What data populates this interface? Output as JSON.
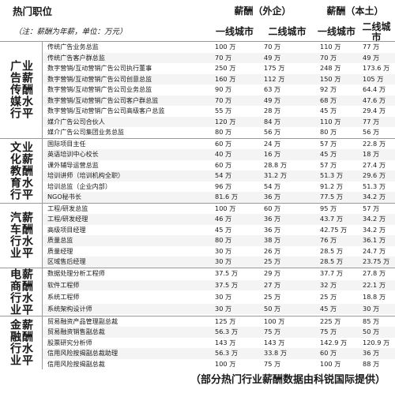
{
  "header": {
    "title": "热门职位",
    "subtitle": "（注：薪酬为年薪，单位：万元）",
    "pay_foreign": "薪酬（外企）",
    "pay_local": "薪酬（本土）",
    "tier1": "一线城市",
    "tier2": "二线城市"
  },
  "sections": [
    {
      "name_cols": [
        "广告传媒行",
        "业薪酬水平"
      ],
      "rows": [
        {
          "job": "传统广告业务总监",
          "f1": "100 万",
          "f2": "70 万",
          "l1": "110 万",
          "l2": "77 万"
        },
        {
          "job": "传统广告客户群总监",
          "f1": "70 万",
          "f2": "49 万",
          "l1": "70 万",
          "l2": "49 万"
        },
        {
          "job": "数字营销/互动营销广告公司执行董事",
          "f1": "250 万",
          "f2": "175 万",
          "l1": "248 万",
          "l2": "173.6 万"
        },
        {
          "job": "数字营销/互动营销广告公司创意总监",
          "f1": "160 万",
          "f2": "112 万",
          "l1": "150 万",
          "l2": "105 万"
        },
        {
          "job": "数字营销/互动营销广告公司业务总监",
          "f1": "90 万",
          "f2": "63 万",
          "l1": "92 万",
          "l2": "64.4 万"
        },
        {
          "job": "数字营销/互动营销广告公司客户群总监",
          "f1": "70 万",
          "f2": "49 万",
          "l1": "68 万",
          "l2": "47.6 万"
        },
        {
          "job": "数字营销/互动营销广告公司高级客户总监",
          "f1": "55 万",
          "f2": "28 万",
          "l1": "45 万",
          "l2": "29.4 万"
        },
        {
          "job": "媒介广告公司合伙人",
          "f1": "120 万",
          "f2": "84 万",
          "l1": "110 万",
          "l2": "77 万"
        },
        {
          "job": "媒介广告公司集团业务总监",
          "f1": "80 万",
          "f2": "56 万",
          "l1": "80 万",
          "l2": "56 万"
        }
      ]
    },
    {
      "name_cols": [
        "文化教育行",
        "业薪酬水平"
      ],
      "rows": [
        {
          "job": "国际项目主任",
          "f1": "60 万",
          "f2": "24 万",
          "l1": "57 万",
          "l2": "22.8 万"
        },
        {
          "job": "英语培训中心校长",
          "f1": "40 万",
          "f2": "16 万",
          "l1": "45 万",
          "l2": "18 万"
        },
        {
          "job": "课外辅导运营总监",
          "f1": "60 万",
          "f2": "28.8 万",
          "l1": "57 万",
          "l2": "27.4 万"
        },
        {
          "job": "培训讲师（培训机构全职）",
          "f1": "54 万",
          "f2": "31.2 万",
          "l1": "51.3 万",
          "l2": "29.6 万"
        },
        {
          "job": "培训总监（企业内部）",
          "f1": "96 万",
          "f2": "54 万",
          "l1": "91.2 万",
          "l2": "51.3 万"
        },
        {
          "job": "NGO秘书长",
          "f1": "81.6 万",
          "f2": "36 万",
          "l1": "77.5 万",
          "l2": "34.2 万"
        }
      ]
    },
    {
      "name_cols": [
        "汽车行业",
        "薪酬水平"
      ],
      "rows": [
        {
          "job": "工程/研发总监",
          "f1": "100 万",
          "f2": "60 万",
          "l1": "95 万",
          "l2": "57 万"
        },
        {
          "job": "工程/研发经理",
          "f1": "46 万",
          "f2": "36 万",
          "l1": "43.7 万",
          "l2": "34.2 万"
        },
        {
          "job": "高级项目经理",
          "f1": "45 万",
          "f2": "36 万",
          "l1": "42.75 万",
          "l2": "34.2 万"
        },
        {
          "job": "质量总监",
          "f1": "80 万",
          "f2": "38 万",
          "l1": "76 万",
          "l2": "36.1 万"
        },
        {
          "job": "质量经理",
          "f1": "30 万",
          "f2": "26 万",
          "l1": "28.5 万",
          "l2": "24.7 万"
        },
        {
          "job": "区域售后经理",
          "f1": "30 万",
          "f2": "25 万",
          "l1": "28.5 万",
          "l2": "23.75 万"
        }
      ]
    },
    {
      "name_cols": [
        "电商行业",
        "薪酬水平"
      ],
      "rows": [
        {
          "job": "数据处理分析工程师",
          "f1": "37.5 万",
          "f2": "29 万",
          "l1": "37.7 万",
          "l2": "27.8 万"
        },
        {
          "job": "软件工程师",
          "f1": "37.5 万",
          "f2": "27 万",
          "l1": "32 万",
          "l2": "22.1 万"
        },
        {
          "job": "系统工程师",
          "f1": "30 万",
          "f2": "25 万",
          "l1": "25 万",
          "l2": "18.8 万"
        },
        {
          "job": "系统架构设计师",
          "f1": "30 万",
          "f2": "50 万",
          "l1": "45 万",
          "l2": "30 万"
        }
      ]
    },
    {
      "name_cols": [
        "金融行业",
        "薪酬水平"
      ],
      "rows": [
        {
          "job": "贸易融资产品管理副总裁",
          "f1": "125 万",
          "f2": "100 万",
          "l1": "225 万",
          "l2": "85 万"
        },
        {
          "job": "贸易融资销售副总裁",
          "f1": "56.3 万",
          "f2": "75 万",
          "l1": "75 万",
          "l2": "50 万"
        },
        {
          "job": "股票研究分析师",
          "f1": "143 万",
          "f2": "143 万",
          "l1": "142.9 万",
          "l2": "120.9 万"
        },
        {
          "job": "信用风险按揭副总裁助理",
          "f1": "56.3 万",
          "f2": "33.8 万",
          "l1": "60 万",
          "l2": "36 万"
        },
        {
          "job": "信用风险按揭副总裁",
          "f1": "100 万",
          "f2": "75 万",
          "l1": "100 万",
          "l2": "88 万"
        }
      ]
    }
  ],
  "footer": "（部分热门行业薪酬数据由科锐国际提供）"
}
